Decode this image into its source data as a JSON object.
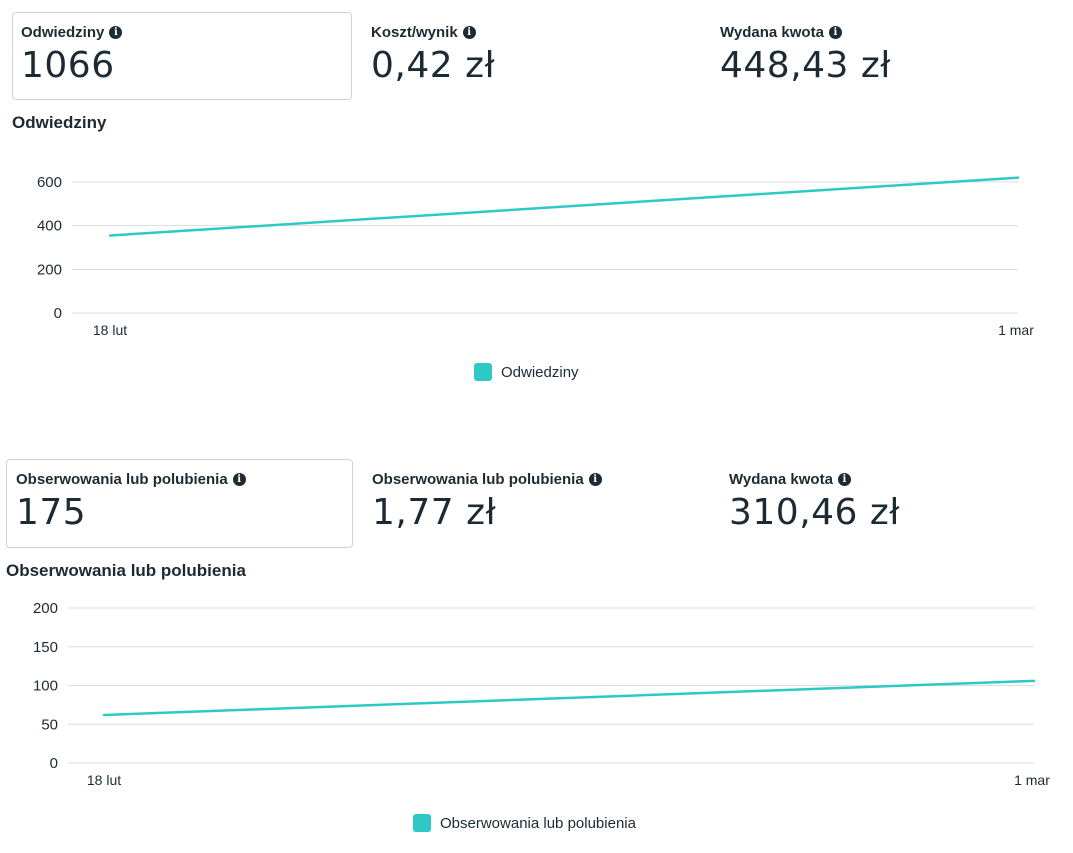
{
  "colors": {
    "series": "#2ec9c4",
    "grid": "#dadde1",
    "text": "#1c2b33"
  },
  "sections": [
    {
      "metrics": [
        {
          "label": "Odwiedziny",
          "value": "1066"
        },
        {
          "label": "Koszt/wynik",
          "value": "0,42 zł"
        },
        {
          "label": "Wydana kwota",
          "value": "448,43 zł"
        }
      ],
      "chart_title": "Odwiedziny",
      "legend_label": "Odwiedziny"
    },
    {
      "metrics": [
        {
          "label": "Obserwowania lub polubienia",
          "value": "175"
        },
        {
          "label": "Obserwowania lub polubienia",
          "value": "1,77 zł"
        },
        {
          "label": "Wydana kwota",
          "value": "310,46 zł"
        }
      ],
      "chart_title": "Obserwowania lub polubienia",
      "legend_label": "Obserwowania lub polubienia"
    }
  ],
  "chart_data": [
    {
      "type": "line",
      "title": "Odwiedziny",
      "x": [
        "18 lut",
        "1 mar"
      ],
      "series": [
        {
          "name": "Odwiedziny",
          "values": [
            355,
            620
          ]
        }
      ],
      "ylim": [
        0,
        600
      ],
      "yticks": [
        "0",
        "200",
        "400",
        "600"
      ],
      "grid": true,
      "legend": "bottom-center"
    },
    {
      "type": "line",
      "title": "Obserwowania lub polubienia",
      "x": [
        "18 lut",
        "1 mar"
      ],
      "series": [
        {
          "name": "Obserwowania lub polubienia",
          "values": [
            62,
            106
          ]
        }
      ],
      "ylim": [
        0,
        200
      ],
      "yticks": [
        "0",
        "50",
        "100",
        "150",
        "200"
      ],
      "grid": true,
      "legend": "bottom-center"
    }
  ]
}
